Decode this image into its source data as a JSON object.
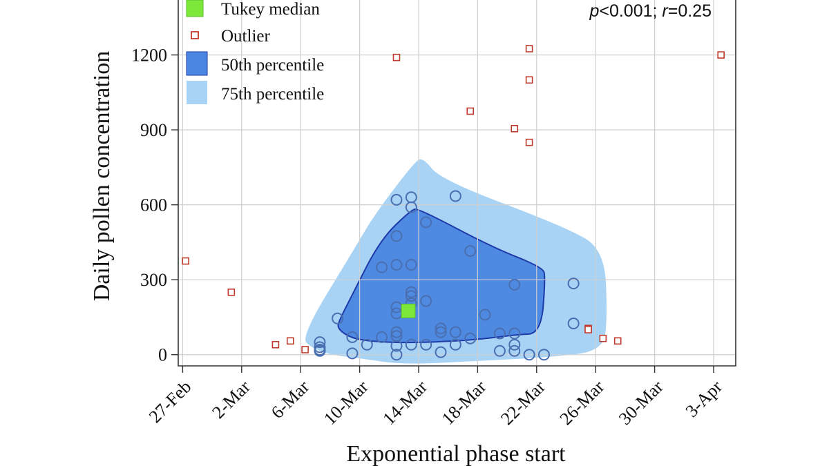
{
  "chart_data": {
    "type": "scatter",
    "title": "",
    "xlabel": "Exponential phase start",
    "ylabel": "Daily pollen concentration",
    "annotation": {
      "p_label": "p",
      "p_value": "<0.001; ",
      "r_label": "r",
      "r_value": "=0.25"
    },
    "x_ticks": [
      "27-Feb",
      "2-Mar",
      "6-Mar",
      "10-Mar",
      "14-Mar",
      "18-Mar",
      "22-Mar",
      "26-Mar",
      "30-Mar",
      "3-Apr"
    ],
    "x_tick_day_offsets": [
      0,
      4,
      8,
      12,
      16,
      20,
      24,
      28,
      32,
      36
    ],
    "xlim_day_offsets": [
      -0.3,
      37.5
    ],
    "y_ticks": [
      0,
      300,
      600,
      900,
      1200
    ],
    "ylim": [
      -45,
      1420
    ],
    "grid": true,
    "legend_position": "top-left",
    "legend": [
      {
        "label": "Tukey median",
        "marker": "filled-square",
        "color": "#7de83a"
      },
      {
        "label": "Outlier",
        "marker": "open-square",
        "color": "#c0392b"
      },
      {
        "label": "50th percentile",
        "marker": "filled-area",
        "color": "#4a86e0"
      },
      {
        "label": "75th percentile",
        "marker": "filled-area",
        "color": "#a8d3f5"
      }
    ],
    "colors": {
      "median": "#7de83a",
      "median_edge": "#5cb82a",
      "outlier": "#c0392b",
      "point": "#4a6fb0",
      "bag_fill": "#4a86e0",
      "bag_edge": "#1e3aa8",
      "fence_fill": "#a8d3f5"
    },
    "tukey_median": {
      "x": 15.3,
      "y": 175
    },
    "bag_50th_percentile": [
      [
        10.5,
        105
      ],
      [
        11.3,
        70
      ],
      [
        12.5,
        55
      ],
      [
        14.5,
        48
      ],
      [
        17,
        50
      ],
      [
        20,
        60
      ],
      [
        22.6,
        80
      ],
      [
        24.3,
        85
      ],
      [
        24.6,
        310
      ],
      [
        24.4,
        350
      ],
      [
        21,
        430
      ],
      [
        16,
        585
      ],
      [
        15.5,
        580
      ],
      [
        13.4,
        460
      ],
      [
        11.5,
        240
      ],
      [
        10.6,
        135
      ]
    ],
    "fence_75th_percentile": [
      [
        8,
        70
      ],
      [
        8.8,
        25
      ],
      [
        10,
        0
      ],
      [
        12,
        -15
      ],
      [
        15,
        -40
      ],
      [
        20,
        -25
      ],
      [
        25,
        -10
      ],
      [
        28.5,
        15
      ],
      [
        28.8,
        150
      ],
      [
        28.6,
        420
      ],
      [
        26,
        510
      ],
      [
        17.5,
        700
      ],
      [
        16.3,
        790
      ],
      [
        15.7,
        770
      ],
      [
        13,
        560
      ],
      [
        11.6,
        420
      ]
    ],
    "inliers": [
      [
        9.3,
        50
      ],
      [
        9.3,
        30
      ],
      [
        9.3,
        20
      ],
      [
        9.3,
        15
      ],
      [
        10.5,
        145
      ],
      [
        11.5,
        70
      ],
      [
        11.5,
        5
      ],
      [
        12.5,
        40
      ],
      [
        13.5,
        350
      ],
      [
        13.5,
        70
      ],
      [
        14.5,
        620
      ],
      [
        14.5,
        475
      ],
      [
        14.5,
        360
      ],
      [
        14.5,
        190
      ],
      [
        14.5,
        165
      ],
      [
        14.5,
        90
      ],
      [
        14.5,
        75
      ],
      [
        14.5,
        35
      ],
      [
        14.5,
        0
      ],
      [
        15.5,
        630
      ],
      [
        15.5,
        590
      ],
      [
        15.5,
        360
      ],
      [
        15.5,
        250
      ],
      [
        15.5,
        235
      ],
      [
        15.5,
        205
      ],
      [
        15.5,
        40
      ],
      [
        16.5,
        530
      ],
      [
        16.5,
        215
      ],
      [
        16.5,
        40
      ],
      [
        17.5,
        105
      ],
      [
        17.5,
        90
      ],
      [
        17.5,
        10
      ],
      [
        18.5,
        635
      ],
      [
        18.5,
        90
      ],
      [
        18.5,
        40
      ],
      [
        19.5,
        415
      ],
      [
        19.5,
        65
      ],
      [
        20.5,
        160
      ],
      [
        21.5,
        85
      ],
      [
        21.5,
        15
      ],
      [
        22.5,
        280
      ],
      [
        22.5,
        85
      ],
      [
        22.5,
        40
      ],
      [
        22.5,
        15
      ],
      [
        23.5,
        0
      ],
      [
        24.5,
        0
      ],
      [
        26.5,
        285
      ],
      [
        26.5,
        125
      ]
    ],
    "outliers": [
      [
        0.2,
        375
      ],
      [
        3.3,
        250
      ],
      [
        6.3,
        40
      ],
      [
        7.3,
        55
      ],
      [
        8.3,
        20
      ],
      [
        14.5,
        1190
      ],
      [
        19.5,
        975
      ],
      [
        22.5,
        905
      ],
      [
        23.5,
        1225
      ],
      [
        23.5,
        1100
      ],
      [
        23.5,
        850
      ],
      [
        27.5,
        105
      ],
      [
        27.5,
        100
      ],
      [
        28.5,
        65
      ],
      [
        29.5,
        55
      ],
      [
        36.5,
        1200
      ]
    ]
  }
}
